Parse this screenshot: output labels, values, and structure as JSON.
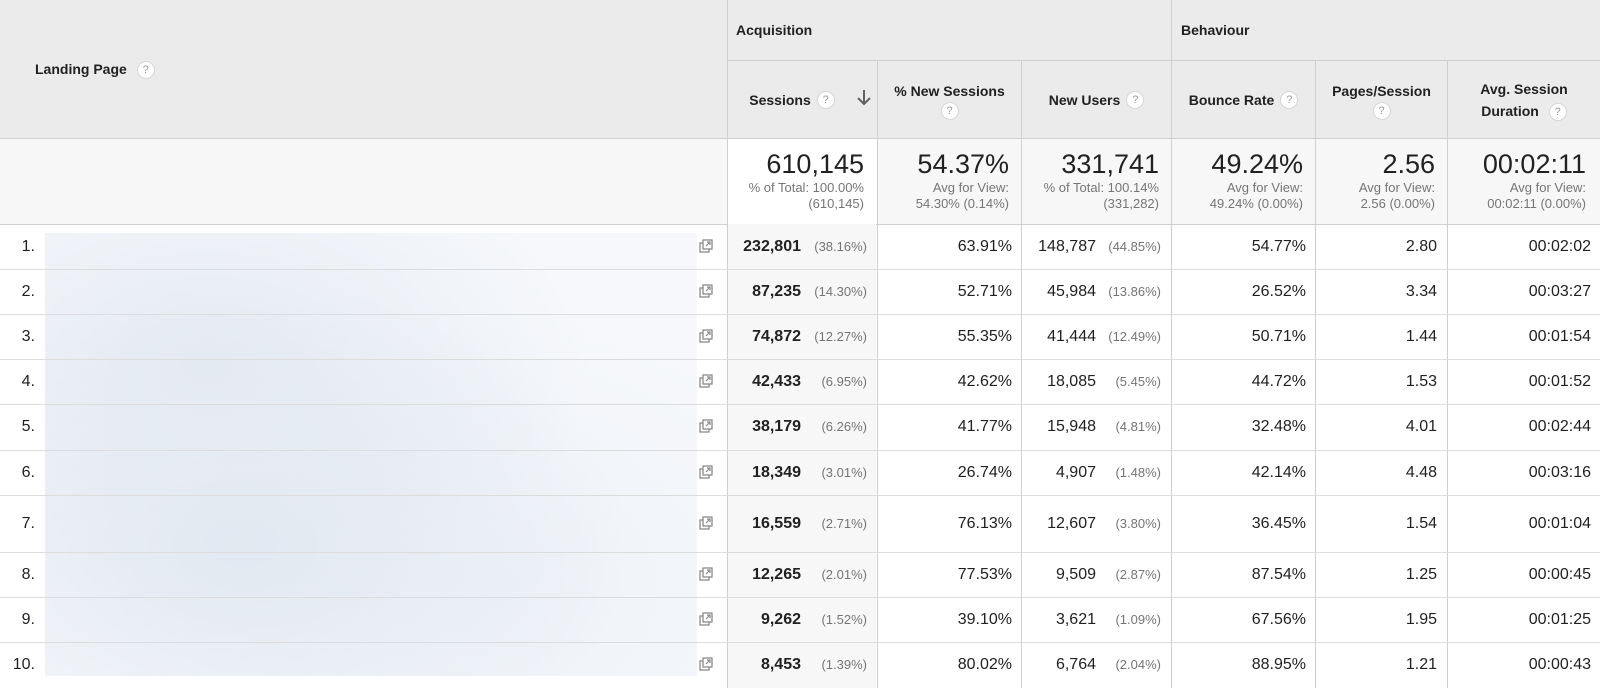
{
  "header": {
    "landing_page_label": "Landing Page",
    "acquisition_label": "Acquisition",
    "behaviour_label": "Behaviour",
    "columns": {
      "sessions": "Sessions",
      "new_sessions": "% New Sessions",
      "new_users": "New Users",
      "bounce_rate": "Bounce Rate",
      "pages_session": "Pages/Session",
      "avg_session_line1": "Avg. Session",
      "avg_session_line2": "Duration"
    },
    "help_glyph": "?",
    "sort_icon": "arrow-down-icon"
  },
  "summary": {
    "sessions": {
      "value": "610,145",
      "sub1": "% of Total: 100.00%",
      "sub2": "(610,145)"
    },
    "new_sessions": {
      "value": "54.37%",
      "sub1": "Avg for View:",
      "sub2": "54.30% (0.14%)"
    },
    "new_users": {
      "value": "331,741",
      "sub1": "% of Total: 100.14%",
      "sub2": "(331,282)"
    },
    "bounce_rate": {
      "value": "49.24%",
      "sub1": "Avg for View:",
      "sub2": "49.24% (0.00%)"
    },
    "pages_session": {
      "value": "2.56",
      "sub1": "Avg for View:",
      "sub2": "2.56 (0.00%)"
    },
    "avg_duration": {
      "value": "00:02:11",
      "sub1": "Avg for View:",
      "sub2": "00:02:11 (0.00%)"
    }
  },
  "rows": [
    {
      "num": "1.",
      "sessions": "232,801",
      "sessions_pct": "(38.16%)",
      "new_sessions": "63.91%",
      "new_users": "148,787",
      "new_users_pct": "(44.85%)",
      "bounce_rate": "54.77%",
      "pages_session": "2.80",
      "avg_duration": "00:02:02"
    },
    {
      "num": "2.",
      "sessions": "87,235",
      "sessions_pct": "(14.30%)",
      "new_sessions": "52.71%",
      "new_users": "45,984",
      "new_users_pct": "(13.86%)",
      "bounce_rate": "26.52%",
      "pages_session": "3.34",
      "avg_duration": "00:03:27"
    },
    {
      "num": "3.",
      "sessions": "74,872",
      "sessions_pct": "(12.27%)",
      "new_sessions": "55.35%",
      "new_users": "41,444",
      "new_users_pct": "(12.49%)",
      "bounce_rate": "50.71%",
      "pages_session": "1.44",
      "avg_duration": "00:01:54"
    },
    {
      "num": "4.",
      "sessions": "42,433",
      "sessions_pct": "(6.95%)",
      "new_sessions": "42.62%",
      "new_users": "18,085",
      "new_users_pct": "(5.45%)",
      "bounce_rate": "44.72%",
      "pages_session": "1.53",
      "avg_duration": "00:01:52"
    },
    {
      "num": "5.",
      "sessions": "38,179",
      "sessions_pct": "(6.26%)",
      "new_sessions": "41.77%",
      "new_users": "15,948",
      "new_users_pct": "(4.81%)",
      "bounce_rate": "32.48%",
      "pages_session": "4.01",
      "avg_duration": "00:02:44"
    },
    {
      "num": "6.",
      "sessions": "18,349",
      "sessions_pct": "(3.01%)",
      "new_sessions": "26.74%",
      "new_users": "4,907",
      "new_users_pct": "(1.48%)",
      "bounce_rate": "42.14%",
      "pages_session": "4.48",
      "avg_duration": "00:03:16"
    },
    {
      "num": "7.",
      "sessions": "16,559",
      "sessions_pct": "(2.71%)",
      "new_sessions": "76.13%",
      "new_users": "12,607",
      "new_users_pct": "(3.80%)",
      "bounce_rate": "36.45%",
      "pages_session": "1.54",
      "avg_duration": "00:01:04"
    },
    {
      "num": "8.",
      "sessions": "12,265",
      "sessions_pct": "(2.01%)",
      "new_sessions": "77.53%",
      "new_users": "9,509",
      "new_users_pct": "(2.87%)",
      "bounce_rate": "87.54%",
      "pages_session": "1.25",
      "avg_duration": "00:00:45"
    },
    {
      "num": "9.",
      "sessions": "9,262",
      "sessions_pct": "(1.52%)",
      "new_sessions": "39.10%",
      "new_users": "3,621",
      "new_users_pct": "(1.09%)",
      "bounce_rate": "67.56%",
      "pages_session": "1.95",
      "avg_duration": "00:01:25"
    },
    {
      "num": "10.",
      "sessions": "8,453",
      "sessions_pct": "(1.39%)",
      "new_sessions": "80.02%",
      "new_users": "6,764",
      "new_users_pct": "(2.04%)",
      "bounce_rate": "88.95%",
      "pages_session": "1.21",
      "avg_duration": "00:00:43"
    }
  ],
  "row_icon": "open-in-new-window-icon",
  "colors": {
    "header_bg": "#ebebeb",
    "summary_bg": "#f7f7f7",
    "border": "#cfcfcf",
    "muted": "#757575"
  }
}
